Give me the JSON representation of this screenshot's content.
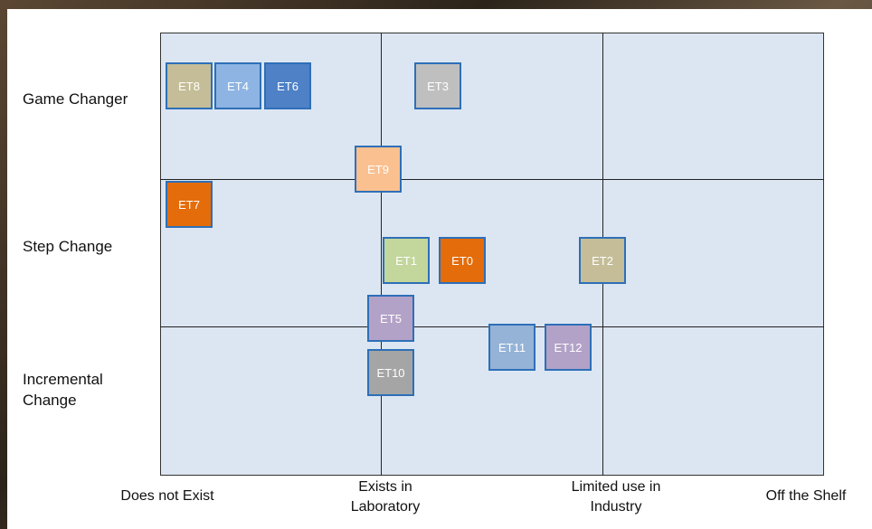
{
  "colors": {
    "grid_fill": "#dce6f2",
    "box_border": "#2e6fb8"
  },
  "y_axis": {
    "labels": [
      "Game Changer",
      "Step Change",
      "Incremental\nChange"
    ]
  },
  "x_axis": {
    "labels": [
      "Does not Exist",
      "Exists in\nLaboratory",
      "Limited use in\nIndustry",
      "Off the Shelf"
    ]
  },
  "technologies": [
    {
      "id": "ET8",
      "label": "ET8",
      "color": "#c4bd97"
    },
    {
      "id": "ET4",
      "label": "ET4",
      "color": "#8db4e2"
    },
    {
      "id": "ET6",
      "label": "ET6",
      "color": "#4f81c7"
    },
    {
      "id": "ET3",
      "label": "ET3",
      "color": "#bfbfbf"
    },
    {
      "id": "ET9",
      "label": "ET9",
      "color": "#fac090"
    },
    {
      "id": "ET7",
      "label": "ET7",
      "color": "#e46c0a"
    },
    {
      "id": "ET1",
      "label": "ET1",
      "color": "#c3d69b"
    },
    {
      "id": "ET0",
      "label": "ET0",
      "color": "#e46c0a"
    },
    {
      "id": "ET2",
      "label": "ET2",
      "color": "#c4bd97"
    },
    {
      "id": "ET5",
      "label": "ET5",
      "color": "#b3a2c7"
    },
    {
      "id": "ET11",
      "label": "ET11",
      "color": "#95b3d7"
    },
    {
      "id": "ET12",
      "label": "ET12",
      "color": "#b3a2c7"
    },
    {
      "id": "ET10",
      "label": "ET10",
      "color": "#a5a5a5"
    }
  ]
}
